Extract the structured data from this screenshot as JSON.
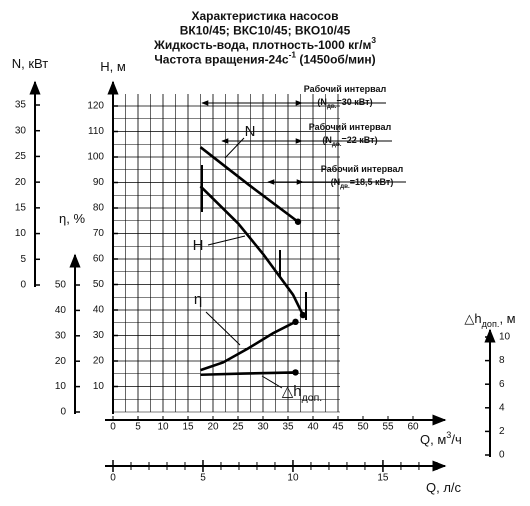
{
  "chart_data": {
    "type": "line",
    "title_lines": [
      [
        {
          "text": "Характеристика насосов"
        }
      ],
      [
        {
          "text": "ВК10/45; ВКС10/45; ВКО10/45"
        }
      ],
      [
        {
          "text": "Жидкость-вода, плотность-1000 кг/м"
        },
        {
          "text": "3",
          "pos": "sup"
        }
      ],
      [
        {
          "text": "Частота вращения-24с"
        },
        {
          "text": "-1",
          "pos": "sup"
        },
        {
          "text": " (1450об/мин)"
        }
      ]
    ],
    "axes": {
      "x": {
        "label": [
          {
            "text": "Q, м"
          },
          {
            "text": "3",
            "pos": "sup"
          },
          {
            "text": "/ч"
          }
        ],
        "lim": [
          0,
          60
        ],
        "ticks": [
          0,
          5,
          10,
          15,
          20,
          25,
          30,
          35,
          40,
          45,
          50,
          55,
          60
        ]
      },
      "x2": {
        "label": [
          {
            "text": "Q, л/с"
          }
        ],
        "lim": [
          0,
          16.67
        ],
        "ticks": [
          0,
          5,
          10,
          15
        ]
      },
      "h": {
        "label": [
          {
            "text": "H, м"
          }
        ],
        "lim": [
          0,
          120
        ],
        "ticks": [
          10,
          20,
          30,
          40,
          50,
          60,
          70,
          80,
          90,
          100,
          110,
          120
        ]
      },
      "n": {
        "label": [
          {
            "text": "N, кВт"
          }
        ],
        "lim": [
          0,
          35
        ],
        "ticks": [
          0,
          5,
          10,
          15,
          20,
          25,
          30,
          35
        ]
      },
      "eta": {
        "label": [
          {
            "text": "η, %"
          }
        ],
        "lim": [
          0,
          50
        ],
        "ticks": [
          0,
          10,
          20,
          30,
          40,
          50
        ]
      },
      "dh": {
        "label": [
          {
            "text": "△h"
          },
          {
            "text": "доп.",
            "pos": "sub"
          },
          {
            "text": ", м"
          }
        ],
        "lim": [
          0,
          10
        ],
        "ticks": [
          0,
          2,
          4,
          6,
          8,
          10
        ]
      }
    },
    "series": [
      {
        "name": [
          {
            "text": "N"
          }
        ],
        "axis": "n",
        "color": "#000000",
        "x": [
          17.5,
          27,
          37
        ],
        "values": [
          26.8,
          19.6,
          12.3
        ]
      },
      {
        "name": [
          {
            "text": "H"
          }
        ],
        "axis": "h",
        "color": "#000000",
        "x": [
          17.5,
          25,
          30,
          36,
          38
        ],
        "values": [
          88.5,
          74,
          62,
          46,
          38
        ]
      },
      {
        "name": [
          {
            "text": "η"
          }
        ],
        "axis": "eta",
        "color": "#000000",
        "x": [
          17.5,
          22,
          27,
          32,
          36.5
        ],
        "values": [
          16.5,
          19.5,
          25,
          31,
          35.5
        ]
      },
      {
        "name": [
          {
            "text": "△h"
          },
          {
            "text": "доп.",
            "pos": "sub"
          }
        ],
        "axis": "dh",
        "color": "#000000",
        "x": [
          17.5,
          26,
          36.5
        ],
        "values": [
          6.8,
          6.9,
          7.0
        ]
      }
    ],
    "annotations": [
      [
        [
          {
            "text": "Рабочий интервал"
          }
        ],
        [
          {
            "text": "(N"
          },
          {
            "text": "дв.",
            "pos": "sub"
          },
          {
            "text": "=30 кВт)"
          }
        ]
      ],
      [
        [
          {
            "text": "Рабочий интервал"
          }
        ],
        [
          {
            "text": "(N"
          },
          {
            "text": "дв.",
            "pos": "sub"
          },
          {
            "text": "=22 кВт)"
          }
        ]
      ],
      [
        [
          {
            "text": "Рабочий интервал"
          }
        ],
        [
          {
            "text": "(N"
          },
          {
            "text": "дв.",
            "pos": "sub"
          },
          {
            "text": "=18,5 кВт)"
          }
        ]
      ]
    ],
    "grid": true
  }
}
